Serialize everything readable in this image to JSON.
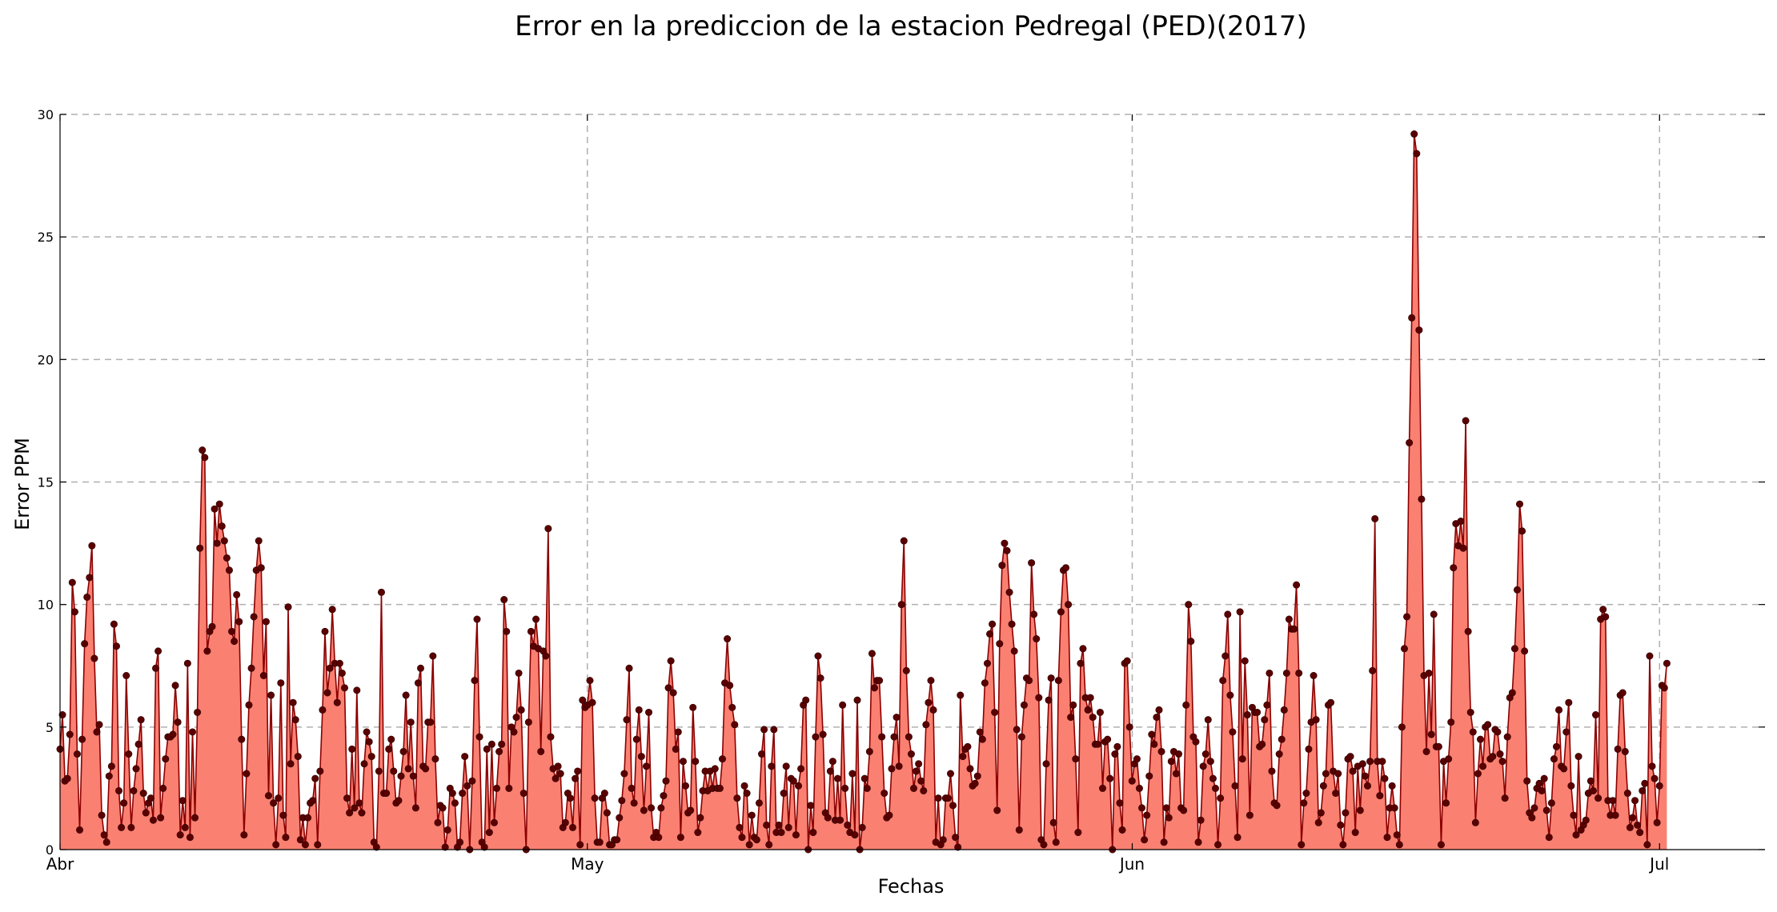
{
  "chart_data": {
    "type": "area",
    "title": "Error en la prediccion de la estacion Pedregal (PED)(2017)",
    "xlabel": "Fechas",
    "ylabel": "Error PPM",
    "ylim": [
      0,
      30
    ],
    "yticks": [
      0,
      5,
      10,
      15,
      20,
      25,
      30
    ],
    "xlim": [
      "2017-04-01",
      "2017-07-07"
    ],
    "xticks": [
      {
        "date": "2017-04-01",
        "label": "Abr"
      },
      {
        "date": "2017-05-01",
        "label": "May"
      },
      {
        "date": "2017-06-01",
        "label": "Jun"
      },
      {
        "date": "2017-07-01",
        "label": "Jul"
      }
    ],
    "grid": true,
    "x_start": "2017-04-01",
    "x_end": "2017-07-01T10:00",
    "colors": {
      "fill": "#fa8072",
      "line": "#8b0000",
      "marker": "#5a0000",
      "grid": "#b0b0b0"
    },
    "series": [
      {
        "values": [
          4.1,
          5.5,
          2.8,
          2.9,
          4.7,
          10.9,
          9.7,
          3.9,
          0.8,
          4.5,
          8.4,
          10.3,
          11.1,
          12.4,
          7.8,
          4.8,
          5.1,
          1.4,
          0.6,
          0.3,
          3.0,
          3.4,
          9.2,
          8.3,
          2.4,
          0.9,
          1.9,
          7.1,
          3.9,
          0.9,
          2.4,
          3.3,
          4.3,
          5.3,
          2.3,
          1.5,
          1.9,
          2.1,
          1.2,
          7.4,
          8.1,
          1.3,
          2.5,
          3.7,
          4.6,
          4.6,
          4.7,
          6.7,
          5.2,
          0.6,
          2.0,
          0.9,
          7.6,
          0.5,
          4.8,
          1.3,
          5.6,
          12.3,
          16.3,
          16.0,
          8.1,
          8.9,
          9.1,
          13.9,
          12.5,
          14.1,
          13.2,
          12.6,
          11.9,
          11.4,
          8.9,
          8.5,
          10.4,
          9.3,
          4.5,
          0.6,
          3.1,
          5.9,
          7.4,
          9.5,
          11.4,
          12.6,
          11.5,
          7.1,
          9.3,
          2.2,
          6.3,
          1.9,
          0.2,
          2.1,
          6.8,
          1.4,
          0.5,
          9.9,
          3.5,
          6.0,
          5.3,
          3.8,
          0.4,
          1.3,
          0.2,
          1.3,
          1.9,
          2.0,
          2.9,
          0.2,
          3.2,
          5.7,
          8.9,
          6.4,
          7.4,
          9.8,
          7.6,
          6.0,
          7.6,
          7.2,
          6.6,
          2.1,
          1.5,
          4.1,
          1.7,
          6.5,
          1.9,
          1.5,
          3.5,
          4.8,
          4.4,
          3.8,
          0.3,
          0.1,
          3.2,
          10.5,
          2.3,
          2.3,
          4.1,
          4.5,
          3.2,
          1.9,
          2.0,
          3.0,
          4.0,
          6.3,
          3.3,
          5.2,
          3.0,
          1.7,
          6.8,
          7.4,
          3.4,
          3.3,
          5.2,
          5.2,
          7.9,
          3.7,
          1.1,
          1.8,
          1.7,
          0.1,
          0.8,
          2.5,
          2.3,
          1.9,
          0.1,
          0.3,
          2.3,
          3.8,
          2.6,
          0.0,
          2.8,
          6.9,
          9.4,
          4.6,
          0.3,
          0.1,
          4.1,
          0.7,
          4.3,
          1.1,
          2.5,
          4.0,
          4.3,
          10.2,
          8.9,
          2.5,
          5.0,
          4.8,
          5.4,
          7.2,
          5.7,
          2.3,
          0.0,
          5.2,
          8.9,
          8.3,
          9.4,
          8.2,
          4.0,
          8.1,
          7.9,
          13.1,
          4.6,
          3.3,
          2.9,
          3.4,
          3.1,
          0.9,
          1.1,
          2.3,
          2.1,
          0.9,
          2.9,
          3.2,
          0.2,
          6.1,
          5.8,
          5.9,
          6.9,
          6.0,
          2.1,
          0.3,
          0.3,
          2.1,
          2.3,
          1.5,
          0.2,
          0.2,
          0.4,
          0.4,
          1.3,
          2.0,
          3.1,
          5.3,
          7.4,
          2.5,
          1.9,
          4.5,
          5.7,
          3.8,
          1.6,
          3.4,
          5.6,
          1.7,
          0.5,
          0.7,
          0.5,
          1.7,
          2.2,
          2.8,
          6.6,
          7.7,
          6.4,
          4.1,
          4.8,
          0.5,
          3.6,
          2.6,
          1.5,
          1.6,
          5.8,
          3.6,
          0.7,
          1.3,
          2.4,
          3.2,
          2.4,
          3.2,
          2.5,
          3.3,
          2.5,
          2.5,
          3.7,
          6.8,
          8.6,
          6.7,
          5.8,
          5.1,
          2.1,
          0.9,
          0.5,
          2.6,
          2.3,
          0.2,
          1.4,
          0.5,
          0.4,
          1.9,
          3.9,
          4.9,
          1.0,
          0.2,
          3.4,
          4.9,
          0.7,
          1.0,
          0.7,
          2.3,
          3.4,
          0.9,
          2.9,
          2.8,
          0.6,
          2.6,
          3.3,
          5.9,
          6.1,
          0.0,
          1.8,
          0.7,
          4.6,
          7.9,
          7.0,
          4.7,
          1.5,
          1.3,
          3.2,
          3.6,
          1.2,
          2.9,
          1.2,
          5.9,
          2.5,
          1.0,
          0.7,
          3.1,
          0.6,
          6.1,
          0.0,
          0.9,
          2.9,
          2.5,
          4.0,
          8.0,
          6.6,
          6.9,
          6.9,
          4.6,
          2.3,
          1.3,
          1.4,
          3.3,
          4.6,
          5.4,
          3.4,
          10.0,
          12.6,
          7.3,
          4.6,
          3.9,
          2.5,
          3.2,
          3.5,
          2.8,
          2.4,
          5.1,
          6.0,
          6.9,
          5.7,
          0.3,
          2.1,
          0.2,
          0.4,
          2.1,
          2.1,
          3.1,
          1.8,
          0.5,
          0.1,
          6.3,
          3.8,
          4.1,
          4.2,
          3.3,
          2.6,
          2.7,
          3.0,
          4.8,
          4.5,
          6.8,
          7.6,
          8.8,
          9.2,
          5.6,
          1.6,
          8.4,
          11.6,
          12.5,
          12.2,
          10.5,
          9.2,
          8.1,
          4.9,
          0.8,
          4.6,
          5.9,
          7.0,
          6.9,
          11.7,
          9.6,
          8.6,
          6.2,
          0.4,
          0.2,
          3.5,
          6.1,
          7.0,
          1.1,
          0.3,
          6.9,
          9.7,
          11.4,
          11.5,
          10.0,
          5.4,
          5.9,
          3.7,
          0.7,
          7.6,
          8.2,
          6.2,
          5.7,
          6.2,
          5.4,
          4.3,
          4.3,
          5.6,
          2.5,
          4.4,
          4.5,
          2.9,
          0.0,
          3.9,
          4.2,
          1.9,
          0.8,
          7.6,
          7.7,
          5.0,
          2.8,
          3.5,
          3.7,
          2.5,
          1.7,
          0.4,
          1.4,
          3.0,
          4.7,
          4.3,
          5.4,
          5.7,
          4.0,
          0.3,
          1.7,
          1.3,
          3.6,
          4.0,
          3.1,
          3.9,
          1.7,
          1.6,
          5.9,
          10.0,
          8.5,
          4.6,
          4.4,
          0.3,
          1.2,
          3.4,
          3.9,
          5.3,
          3.6,
          2.9,
          2.5,
          0.2,
          2.1,
          6.9,
          7.9,
          9.6,
          6.3,
          4.8,
          2.6,
          0.5,
          9.7,
          3.7,
          7.7,
          5.5,
          1.4,
          5.8,
          5.6,
          5.6,
          4.2,
          4.3,
          5.3,
          5.9,
          7.2,
          3.2,
          1.9,
          1.8,
          3.9,
          4.5,
          5.7,
          7.2,
          9.4,
          9.0,
          9.0,
          10.8,
          7.2,
          0.2,
          1.9,
          2.3,
          4.1,
          5.2,
          7.1,
          5.3,
          1.1,
          1.5,
          2.6,
          3.1,
          5.9,
          6.0,
          3.2,
          2.3,
          3.1,
          1.0,
          0.2,
          1.5,
          3.7,
          3.8,
          3.2,
          0.7,
          3.4,
          1.6,
          3.5,
          3.0,
          2.6,
          3.6,
          7.3,
          13.5,
          3.6,
          2.2,
          3.6,
          2.9,
          0.5,
          1.7,
          2.6,
          1.7,
          0.6,
          0.2,
          5.0,
          8.2,
          9.5,
          16.6,
          21.7,
          29.2,
          28.4,
          21.2,
          14.3,
          7.1,
          4.0,
          7.2,
          4.7,
          9.6,
          4.2,
          4.2,
          0.2,
          3.6,
          1.9,
          3.7,
          5.2,
          11.5,
          13.3,
          12.4,
          13.4,
          12.3,
          17.5,
          8.9,
          5.6,
          4.8,
          1.1,
          3.1,
          4.5,
          3.4,
          5.0,
          5.1,
          3.7,
          3.8,
          4.9,
          4.8,
          3.9,
          3.6,
          2.1,
          4.6,
          6.2,
          6.4,
          8.2,
          10.6,
          14.1,
          13.0,
          8.1,
          2.8,
          1.5,
          1.3,
          1.7,
          2.5,
          2.7,
          2.4,
          2.9,
          1.6,
          0.5,
          1.9,
          3.7,
          4.2,
          5.7,
          3.4,
          3.3,
          4.8,
          6.0,
          2.6,
          1.4,
          0.6,
          3.8,
          0.8,
          1.0,
          1.2,
          2.3,
          2.8,
          2.4,
          5.5,
          2.1,
          9.4,
          9.8,
          9.5,
          2.0,
          1.4,
          2.0,
          1.4,
          4.1,
          6.3,
          6.4,
          4.0,
          2.3,
          0.9,
          1.3,
          2.0,
          1.0,
          0.7,
          2.4,
          2.7,
          0.2,
          7.9,
          3.4,
          2.9,
          1.1,
          2.6,
          6.7,
          6.6,
          7.6
        ]
      }
    ]
  }
}
